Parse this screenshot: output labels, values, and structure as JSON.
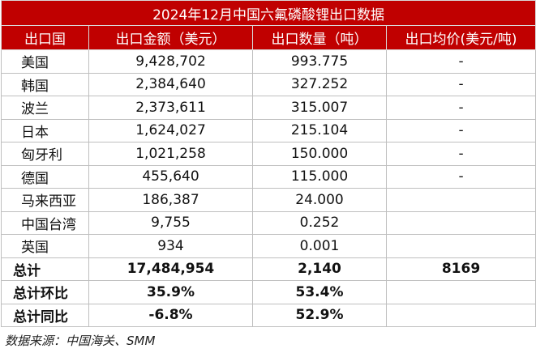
{
  "title": "2024年12月中国六氟磷酸锂出口数据",
  "table": {
    "header": [
      "出口国",
      "出口金额（美元）",
      "出口数量（吨）",
      "出口均价(美元/吨)"
    ],
    "rows": [
      [
        "美国",
        "9,428,702",
        "993.775",
        "-"
      ],
      [
        "韩国",
        "2,384,640",
        "327.252",
        "-"
      ],
      [
        "波兰",
        "2,373,611",
        "315.007",
        "-"
      ],
      [
        "日本",
        "1,624,027",
        "215.104",
        "-"
      ],
      [
        "匈牙利",
        "1,021,258",
        "150.000",
        "-"
      ],
      [
        "德国",
        "455,640",
        "115.000",
        "-"
      ],
      [
        "马来西亚",
        "186,387",
        "24.000"
      ],
      [
        "中国台湾",
        "9,755",
        "0.252"
      ],
      [
        "英国",
        "934",
        "0.001"
      ]
    ],
    "summary_rows": [
      [
        "总计",
        "17,484,954",
        "2,140",
        "8169"
      ],
      [
        "总计环比",
        "35.9%",
        "53.4%"
      ],
      [
        "总计同比",
        "-6.8%",
        "52.9%"
      ]
    ]
  },
  "note": "数据来源：中国海关、SMM"
}
